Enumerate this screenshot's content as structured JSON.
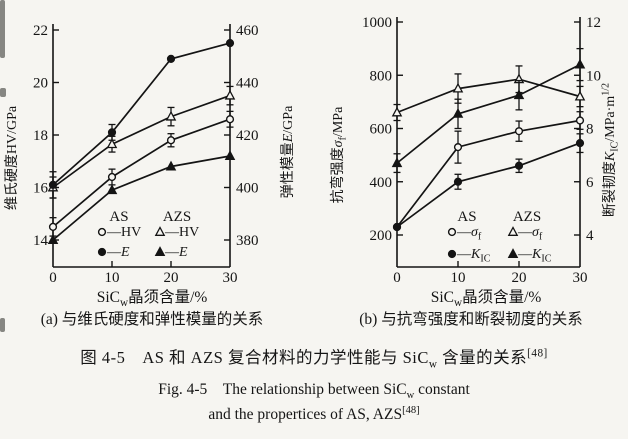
{
  "figure": {
    "caption_cn_parts": [
      {
        "t": "图 4-5　AS 和 AZS 复合材料的力学性能与 SiC"
      },
      {
        "t": "w",
        "sub": true
      },
      {
        "t": " 含量的关系"
      },
      {
        "t": "[48]",
        "sup": true
      }
    ],
    "caption_en1_parts": [
      {
        "t": "Fig. 4-5　The relationship between SiC"
      },
      {
        "t": "w",
        "sub": true
      },
      {
        "t": " constant"
      }
    ],
    "caption_en2_parts": [
      {
        "t": "and the propertices of AS, AZS"
      },
      {
        "t": "[48]",
        "sup": true
      }
    ]
  },
  "chart_data": [
    {
      "panel": "a",
      "type": "line",
      "x": [
        0,
        10,
        20,
        30
      ],
      "xlabel": "SiCw晶须含量/%",
      "xlabel_parts": [
        {
          "t": "SiC"
        },
        {
          "t": "w",
          "sub": true
        },
        {
          "t": "晶须含量/%"
        }
      ],
      "sub_caption": "(a) 与维氏硬度和弹性模量的关系",
      "left_axis": {
        "label": "维氏硬度HV/GPa",
        "label_parts": [
          {
            "t": "维氏硬度HV/GPa"
          }
        ],
        "min": 14,
        "max": 22,
        "ticks": [
          14,
          16,
          18,
          20,
          22
        ]
      },
      "right_axis": {
        "label": "弹性模量E/GPa",
        "label_parts": [
          {
            "t": "弹性模量"
          },
          {
            "t": "E",
            "italic": true
          },
          {
            "t": "/GPa"
          }
        ],
        "min": 380,
        "max": 460,
        "ticks": [
          380,
          400,
          420,
          440,
          460
        ]
      },
      "series": [
        {
          "name": "AS HV",
          "group": "AS",
          "axis": "left",
          "marker": "open-circle",
          "values": [
            14.5,
            16.4,
            17.8,
            18.6
          ],
          "err": [
            0.35,
            0.3,
            0.25,
            0.3
          ]
        },
        {
          "name": "AZS HV",
          "group": "AZS",
          "axis": "left",
          "marker": "open-triangle",
          "values": [
            16.0,
            17.65,
            18.7,
            19.5
          ],
          "err": [
            0.4,
            0.3,
            0.35,
            0.35
          ]
        },
        {
          "name": "AS E",
          "group": "AS",
          "axis": "right",
          "marker": "filled-circle",
          "values": [
            401,
            421,
            449,
            455
          ],
          "err": [
            5,
            3,
            0,
            0
          ]
        },
        {
          "name": "AZS E",
          "group": "AZS",
          "axis": "right",
          "marker": "filled-triangle",
          "values": [
            380,
            399,
            408,
            412
          ],
          "err": [
            0,
            0,
            0,
            0
          ]
        }
      ],
      "legend": {
        "columns": [
          {
            "header": "AS",
            "items": [
              {
                "marker": "open-circle",
                "label": "HV",
                "label_parts": [
                  {
                    "t": "HV"
                  }
                ]
              },
              {
                "marker": "filled-circle",
                "label": "E",
                "label_parts": [
                  {
                    "t": "E",
                    "italic": true
                  }
                ]
              }
            ]
          },
          {
            "header": "AZS",
            "items": [
              {
                "marker": "open-triangle",
                "label": "HV",
                "label_parts": [
                  {
                    "t": "HV"
                  }
                ]
              },
              {
                "marker": "filled-triangle",
                "label": "E",
                "label_parts": [
                  {
                    "t": "E",
                    "italic": true
                  }
                ]
              }
            ]
          }
        ]
      }
    },
    {
      "panel": "b",
      "type": "line",
      "x": [
        0,
        10,
        20,
        30
      ],
      "xlabel": "SiCw晶须含量/%",
      "xlabel_parts": [
        {
          "t": "SiC"
        },
        {
          "t": "w",
          "sub": true
        },
        {
          "t": "晶须含量/%"
        }
      ],
      "sub_caption": "(b) 与抗弯强度和断裂韧度的关系",
      "left_axis": {
        "label": "抗弯强度σf/MPa",
        "label_parts": [
          {
            "t": "抗弯强度"
          },
          {
            "t": "σ",
            "italic": true
          },
          {
            "t": "f",
            "sub": true
          },
          {
            "t": "/MPa"
          }
        ],
        "min": 200,
        "max": 1000,
        "ticks": [
          200,
          400,
          600,
          800,
          1000
        ]
      },
      "right_axis": {
        "label": "断裂韧度KIC/MPa·m1/2",
        "label_parts": [
          {
            "t": "断裂韧度"
          },
          {
            "t": "K",
            "italic": true
          },
          {
            "t": "IC",
            "sub": true
          },
          {
            "t": "/MPa·m"
          },
          {
            "t": "1/2",
            "sup": true
          }
        ],
        "min": 4,
        "max": 12,
        "ticks": [
          4,
          6,
          8,
          10,
          12
        ]
      },
      "series": [
        {
          "name": "AS sigma-f",
          "group": "AS",
          "axis": "left",
          "marker": "open-circle",
          "values": [
            230,
            530,
            590,
            630
          ],
          "err": [
            0,
            60,
            38,
            33
          ]
        },
        {
          "name": "AZS sigma-f",
          "group": "AZS",
          "axis": "left",
          "marker": "open-triangle",
          "values": [
            660,
            750,
            785,
            720
          ],
          "err": [
            30,
            55,
            50,
            38
          ]
        },
        {
          "name": "AS KIC",
          "group": "AS",
          "axis": "right",
          "marker": "filled-circle",
          "values": [
            4.3,
            6.0,
            6.6,
            7.45
          ],
          "err": [
            0,
            0.28,
            0.25,
            0.35
          ]
        },
        {
          "name": "AZS KIC",
          "group": "AZS",
          "axis": "right",
          "marker": "filled-triangle",
          "values": [
            6.7,
            8.55,
            9.25,
            10.4
          ],
          "err": [
            0.35,
            0.55,
            0.55,
            0.6
          ]
        }
      ],
      "legend": {
        "columns": [
          {
            "header": "AS",
            "items": [
              {
                "marker": "open-circle",
                "label": "σf",
                "label_parts": [
                  {
                    "t": "σ",
                    "italic": true
                  },
                  {
                    "t": "f",
                    "sub": true
                  }
                ]
              },
              {
                "marker": "filled-circle",
                "label": "KIC",
                "label_parts": [
                  {
                    "t": "K",
                    "italic": true
                  },
                  {
                    "t": "IC",
                    "sub": true
                  }
                ]
              }
            ]
          },
          {
            "header": "AZS",
            "items": [
              {
                "marker": "open-triangle",
                "label": "σf",
                "label_parts": [
                  {
                    "t": "σ",
                    "italic": true
                  },
                  {
                    "t": "f",
                    "sub": true
                  }
                ]
              },
              {
                "marker": "filled-triangle",
                "label": "KIC",
                "label_parts": [
                  {
                    "t": "K",
                    "italic": true
                  },
                  {
                    "t": "IC",
                    "sub": true
                  }
                ]
              }
            ]
          }
        ]
      }
    }
  ]
}
